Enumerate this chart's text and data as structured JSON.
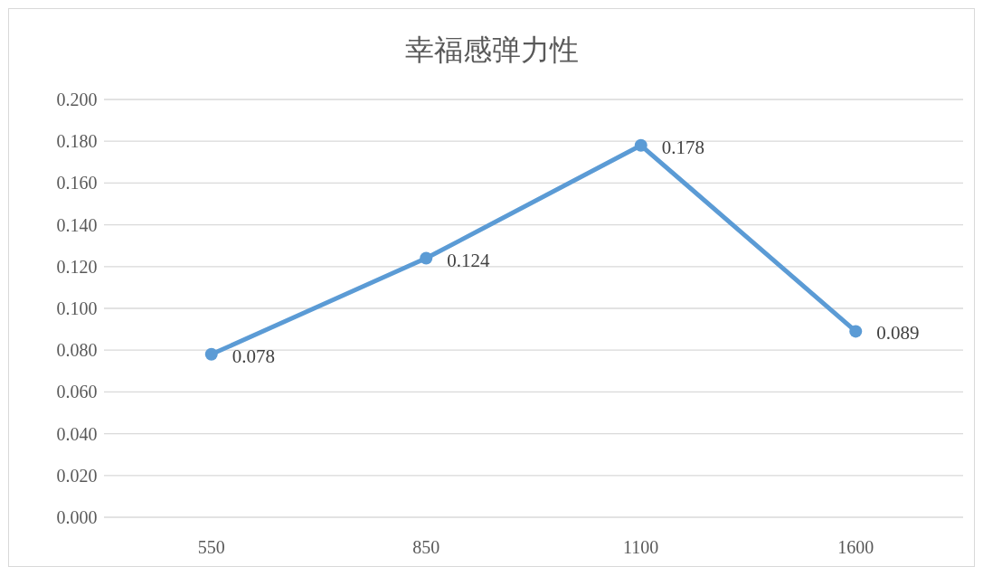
{
  "chart_data": {
    "type": "line",
    "title": "幸福感弹力性",
    "categories": [
      "550",
      "850",
      "1100",
      "1600"
    ],
    "series": [
      {
        "color": "#5b9bd5",
        "values": [
          0.078,
          0.124,
          0.178,
          0.089
        ]
      }
    ],
    "ylim": [
      0,
      0.2
    ],
    "yticks": [
      {
        "value": 0,
        "label": "0.000"
      },
      {
        "value": 0.02,
        "label": "0.020"
      },
      {
        "value": 0.04,
        "label": "0.040"
      },
      {
        "value": 0.06,
        "label": "0.060"
      },
      {
        "value": 0.08,
        "label": "0.080"
      },
      {
        "value": 0.1,
        "label": "0.100"
      },
      {
        "value": 0.12,
        "label": "0.120"
      },
      {
        "value": 0.14,
        "label": "0.140"
      },
      {
        "value": 0.16,
        "label": "0.160"
      },
      {
        "value": 0.18,
        "label": "0.180"
      },
      {
        "value": 0.2,
        "label": "0.200"
      }
    ],
    "grid": "y",
    "marker": "circle",
    "line_style": "solid",
    "data_labels": true
  }
}
